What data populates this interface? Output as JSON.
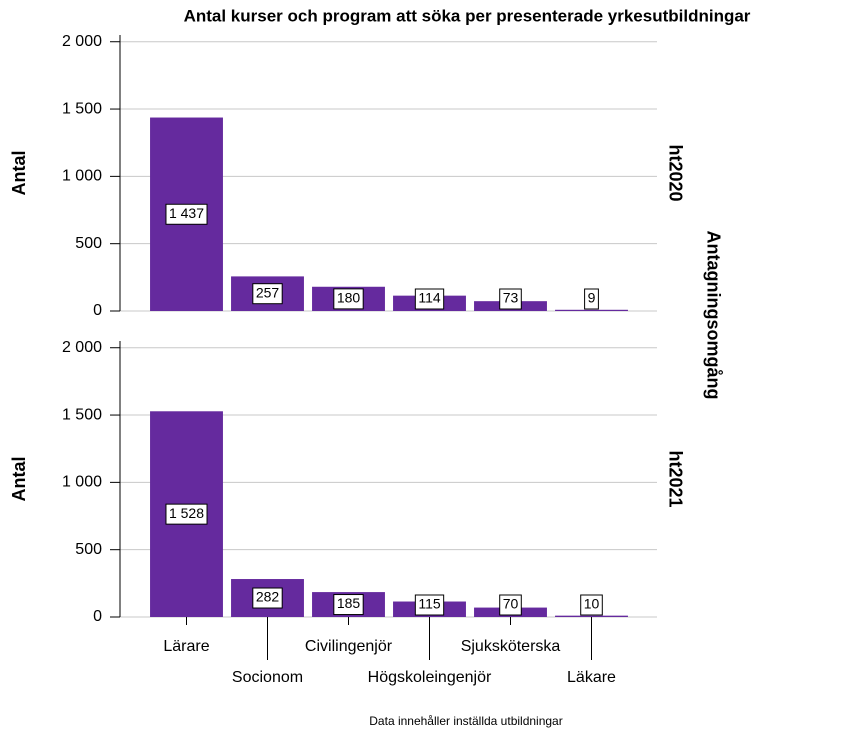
{
  "chart_data": {
    "type": "bar",
    "title": "Antal kurser och program att söka per presenterade yrkesutbildningar",
    "note": "Data innehåller inställda utbildningar",
    "ylabel": "Antal",
    "facet_title": "Antagningsomgång",
    "categories": [
      "Lärare",
      "Socionom",
      "Civilingenjör",
      "Högskoleingenjör",
      "Sjuksköterska",
      "Läkare"
    ],
    "color": "#652a9e",
    "ylim": [
      0,
      2050
    ],
    "yticks": [
      0,
      500,
      {
        "value": 1000,
        "label": "1 000"
      },
      {
        "value": 1500,
        "label": "1 500"
      },
      {
        "value": 2000,
        "label": "2 000"
      }
    ],
    "grid": true,
    "panels": [
      {
        "label": "ht2020",
        "values": [
          1437,
          257,
          180,
          114,
          73,
          9
        ],
        "value_labels": [
          "1 437",
          "257",
          "180",
          "114",
          "73",
          "9"
        ]
      },
      {
        "label": "ht2021",
        "values": [
          1528,
          282,
          185,
          115,
          70,
          10
        ],
        "value_labels": [
          "1 528",
          "282",
          "185",
          "115",
          "70",
          "10"
        ]
      }
    ]
  }
}
